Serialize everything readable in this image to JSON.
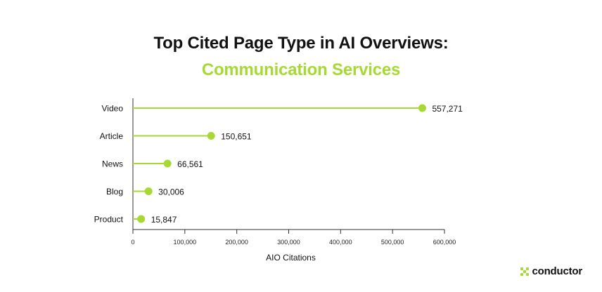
{
  "title": "Top Cited Page Type in AI Overviews:",
  "subtitle": "Communication Services",
  "brand": {
    "name": "conductor"
  },
  "colors": {
    "accent": "#a6d933",
    "text": "#111111",
    "axis": "#333333"
  },
  "chart_data": {
    "type": "lollipop",
    "categories": [
      "Video",
      "Article",
      "News",
      "Blog",
      "Product"
    ],
    "values": [
      557271,
      150651,
      66561,
      30006,
      15847
    ],
    "value_labels": [
      "557,271",
      "150,651",
      "66,561",
      "30,006",
      "15,847"
    ],
    "xlabel": "AIO Citations",
    "ylabel": "",
    "xlim": [
      0,
      600000
    ],
    "x_ticks": [
      0,
      100000,
      200000,
      300000,
      400000,
      500000,
      600000
    ],
    "x_tick_labels": [
      "0",
      "100,000",
      "200,000",
      "300,000",
      "400,000",
      "500,000",
      "600,000"
    ],
    "grid": false,
    "orientation": "horizontal"
  }
}
